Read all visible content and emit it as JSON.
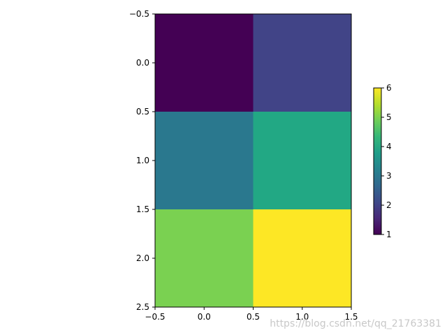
{
  "chart_data": {
    "type": "heatmap",
    "title": "",
    "xlabel": "",
    "ylabel": "",
    "xlim": [
      -0.5,
      1.5
    ],
    "ylim": [
      2.5,
      -0.5
    ],
    "y_inverted": true,
    "x_ticks": [
      -0.5,
      0.0,
      0.5,
      1.0,
      1.5
    ],
    "x_tick_labels": [
      "−0.5",
      "0.0",
      "0.5",
      "1.0",
      "1.5"
    ],
    "y_ticks": [
      -0.5,
      0.0,
      0.5,
      1.0,
      1.5,
      2.0,
      2.5
    ],
    "y_tick_labels": [
      "−0.5",
      "0.0",
      "0.5",
      "1.0",
      "1.5",
      "2.0",
      "2.5"
    ],
    "values": [
      [
        1,
        2
      ],
      [
        3,
        4
      ],
      [
        5,
        6
      ]
    ],
    "colormap": "viridis",
    "colorbar": {
      "min": 1,
      "max": 6,
      "ticks": [
        1,
        2,
        3,
        4,
        5,
        6
      ],
      "tick_labels": [
        "1",
        "2",
        "3",
        "4",
        "5",
        "6"
      ],
      "placement": "right"
    },
    "grid": false
  },
  "colors": {
    "cells": [
      [
        "#440154",
        "#414487"
      ],
      [
        "#2a788e",
        "#22a884"
      ],
      [
        "#7ad151",
        "#fde725"
      ]
    ],
    "colorbar_stops": [
      "#440154",
      "#482878",
      "#3e4989",
      "#31688e",
      "#26828e",
      "#1f9e89",
      "#35b779",
      "#6ece58",
      "#b5de2b",
      "#fde725"
    ]
  },
  "watermark": "https://blog.csdn.net/qq_21763381"
}
